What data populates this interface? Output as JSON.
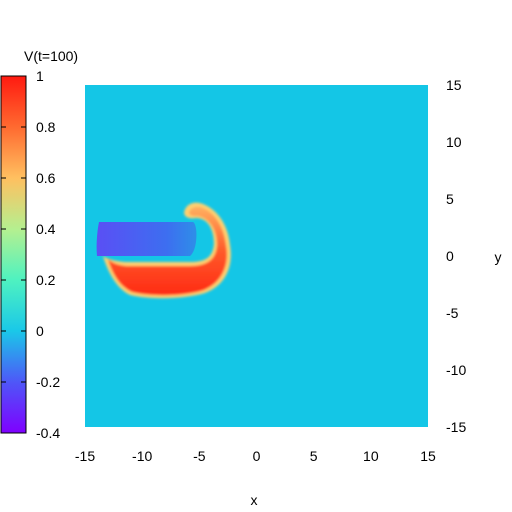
{
  "chart_data": {
    "type": "heatmap",
    "title": "",
    "xlabel": "x",
    "ylabel": "y",
    "xlim": [
      -15,
      15
    ],
    "ylim": [
      -15,
      15
    ],
    "x_ticks": [
      "-15",
      "-10",
      "-5",
      "0",
      "5",
      "10",
      "15"
    ],
    "y_ticks": [
      "15",
      "10",
      "5",
      "0",
      "-5",
      "-10",
      "-15"
    ],
    "colorbar": {
      "label": "V(t=100)",
      "range": [
        -0.4,
        1
      ],
      "ticks": [
        "1",
        "0.8",
        "0.6",
        "0.4",
        "0.2",
        "0",
        "-0.2",
        "-0.4"
      ],
      "colormap": "rainbow"
    },
    "field": {
      "background_value": 0,
      "background_color": "#14c6e6",
      "regions": [
        {
          "kind": "excited-front",
          "value": 1,
          "color": "#ff3a1c"
        },
        {
          "kind": "refractory-tail",
          "value": -0.25,
          "color": "#3f70f0"
        }
      ]
    },
    "grid": false
  }
}
